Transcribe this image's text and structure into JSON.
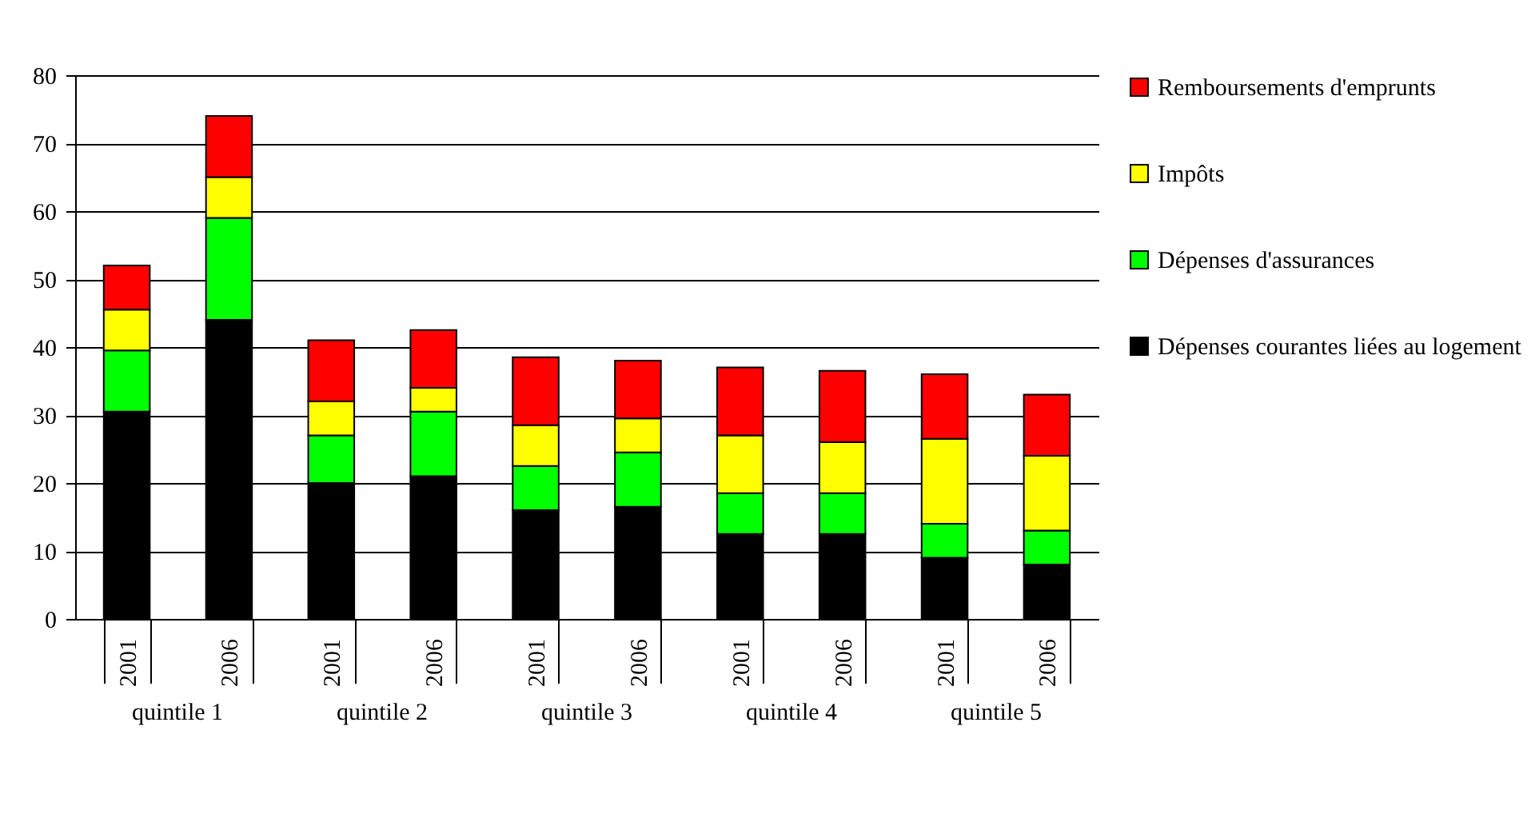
{
  "chart_data": {
    "type": "bar",
    "stacked": true,
    "categories": [
      "2001",
      "2006",
      "2001",
      "2006",
      "2001",
      "2006",
      "2001",
      "2006",
      "2001",
      "2006"
    ],
    "series": [
      {
        "name": "Dépenses courantes liées au logement",
        "color": "#000000",
        "values": [
          30.5,
          44,
          20,
          21,
          16,
          16.5,
          12.5,
          12.5,
          9,
          8
        ]
      },
      {
        "name": "Dépenses d'assurances",
        "color": "#00ff00",
        "values": [
          9,
          15,
          7,
          9.5,
          6.5,
          8,
          6,
          6,
          5,
          5
        ]
      },
      {
        "name": "Impôts",
        "color": "#ffff00",
        "values": [
          6,
          6,
          5,
          3.5,
          6,
          5,
          8.5,
          7.5,
          12.5,
          11
        ]
      },
      {
        "name": "Remboursements d'emprunts",
        "color": "#ff0000",
        "values": [
          6.5,
          9,
          9,
          8.5,
          10,
          8.5,
          10,
          10.5,
          9.5,
          9
        ]
      }
    ],
    "annotations": [
      "quintile 1",
      "quintile 2",
      "quintile 3",
      "quintile 4",
      "quintile 5"
    ],
    "ylim": [
      0,
      80
    ],
    "yticks": [
      0,
      10,
      20,
      30,
      40,
      50,
      60,
      70,
      80
    ],
    "grid": "y",
    "legend": "right"
  }
}
